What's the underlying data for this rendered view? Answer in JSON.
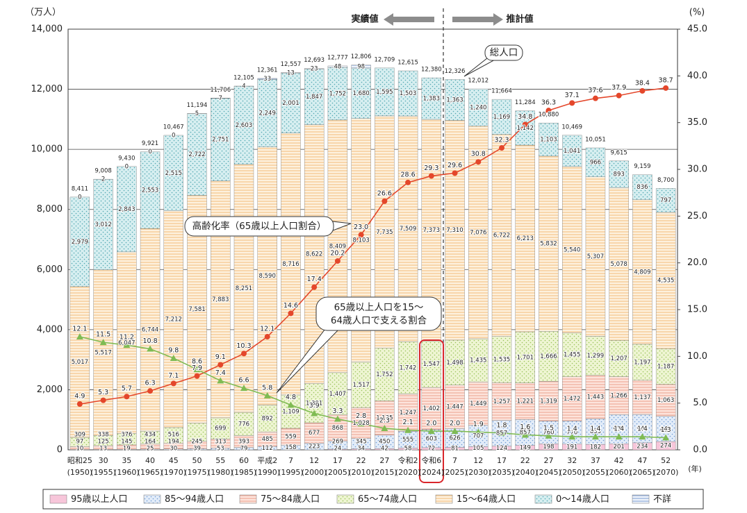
{
  "chart_data": {
    "type": "bar",
    "y_unit": "（万人）",
    "y2_unit": "(%)",
    "x_unit": "(年)",
    "annotations": {
      "actual": "実績値",
      "projected": "推計値",
      "total": "総人口",
      "aging_callout": "高齢化率（65歳以上人口割合）",
      "support_callout": [
        "65歳以上人口を15～",
        "64歳人口で支える割合"
      ]
    },
    "categories": [
      "昭和25",
      "30",
      "35",
      "40",
      "45",
      "50",
      "55",
      "60",
      "平成2",
      "7",
      "12",
      "17",
      "22",
      "27",
      "令和2",
      "令和6",
      "7",
      "12",
      "17",
      "22",
      "27",
      "32",
      "37",
      "42",
      "47",
      "52"
    ],
    "category_years": [
      "(1950)",
      "(1955)",
      "(1960)",
      "(1965)",
      "(1970)",
      "(1975)",
      "(1980)",
      "(1985)",
      "(1990)",
      "(1995)",
      "(2000)",
      "(2005)",
      "(2010)",
      "(2015)",
      "(2020)",
      "(2024)",
      "(2025)",
      "(2030)",
      "(2035)",
      "(2040)",
      "(2045)",
      "(2050)",
      "(2055)",
      "(2060)",
      "(2065)",
      "(2070)"
    ],
    "ylim": [
      0,
      14000
    ],
    "yticks": [
      0,
      {
        "value": 2000,
        "label": "2,000"
      },
      {
        "value": 4000,
        "label": "4,000"
      },
      {
        "value": 6000,
        "label": "6,000"
      },
      {
        "value": 8000,
        "label": "8,000"
      },
      {
        "value": 10000,
        "label": "10,000"
      },
      {
        "value": 12000,
        "label": "12,000"
      },
      {
        "value": 14000,
        "label": "14,000"
      }
    ],
    "y2lim": [
      0,
      45
    ],
    "y2ticks": [
      {
        "value": 0,
        "label": "0.0"
      },
      {
        "value": 5,
        "label": "5.0"
      },
      {
        "value": 10,
        "label": "10.0"
      },
      {
        "value": 15,
        "label": "15.0"
      },
      {
        "value": 20,
        "label": "20.0"
      },
      {
        "value": 25,
        "label": "25.0"
      },
      {
        "value": 30,
        "label": "30.0"
      },
      {
        "value": 35,
        "label": "35.0"
      },
      {
        "value": 40,
        "label": "40.0"
      },
      {
        "value": 45,
        "label": "45.0"
      }
    ],
    "grid": true,
    "totals": {
      "values": [
        8411,
        9008,
        9430,
        9921,
        10467,
        11194,
        11706,
        12105,
        12361,
        12557,
        12693,
        12777,
        12806,
        12709,
        12615,
        12380,
        12326,
        12012,
        11664,
        11284,
        10880,
        10469,
        10051,
        9615,
        9159,
        8700
      ],
      "value_labels": [
        "8,411",
        "9,008",
        "9,430",
        "9,921",
        "10,467",
        "11,194",
        "11,706",
        "12,105",
        "12,361",
        "12,557",
        "12,693",
        "12,777",
        "12,806",
        "12,709",
        "12,615",
        "12,380",
        "12,326",
        "12,012",
        "11,664",
        "11,284",
        "10,880",
        "10,469",
        "10,051",
        "9,615",
        "9,159",
        "8,700"
      ]
    },
    "series": [
      {
        "name": "95歳以上人口",
        "color": "#f7c6da",
        "pattern": "solid",
        "pattern_color": "#f7c6da",
        "values": [
          null,
          null,
          null,
          null,
          null,
          null,
          null,
          null,
          null,
          null,
          null,
          24,
          34,
          42,
          58,
          72,
          81,
          105,
          124,
          149,
          198,
          191,
          182,
          201,
          234,
          274
        ]
      },
      {
        "name": "85～94歳人口",
        "color": "#e2ecf9",
        "pattern": "dots",
        "pattern_color": "#6f9ad3",
        "values": [
          10,
          13,
          19,
          25,
          30,
          39,
          53,
          79,
          112,
          158,
          223,
          269,
          345,
          450,
          555,
          603,
          626,
          707,
          857,
          857,
          760,
          770,
          853,
          970,
          945,
          843
        ]
      },
      {
        "name": "75～84歳人口",
        "color": "#fde4dc",
        "pattern": "stripes",
        "pattern_color": "#e4836b",
        "values": [
          97,
          125,
          145,
          164,
          194,
          245,
          313,
          393,
          485,
          559,
          677,
          868,
          1028,
          1135,
          1247,
          1402,
          1447,
          1449,
          1257,
          1221,
          1319,
          1472,
          1443,
          1266,
          1137,
          1063
        ],
        "value_labels": [
          "97",
          "125",
          "145",
          "164",
          "194",
          "245",
          "313",
          "393",
          "485",
          "559",
          "677",
          "868",
          "1,028",
          "1,135",
          "1,247",
          "1,402",
          "1,447",
          "1,449",
          "1,257",
          "1,221",
          "1,319",
          "1,472",
          "1,443",
          "1,266",
          "1,137",
          "1,063"
        ]
      },
      {
        "name": "65～74歳人口",
        "color": "#eef5d2",
        "pattern": "dots",
        "pattern_color": "#98c257",
        "values": [
          309,
          338,
          376,
          434,
          516,
          602,
          699,
          776,
          892,
          1109,
          1301,
          1407,
          1517,
          1752,
          1742,
          1547,
          1498,
          1435,
          1535,
          1701,
          1666,
          1455,
          1299,
          1207,
          1197,
          1187
        ],
        "value_labels": [
          "309",
          "338",
          "376",
          "434",
          "516",
          null,
          "699",
          "776",
          "892",
          "1,109",
          "1,301",
          "1,407",
          "1,517",
          "1,752",
          "1,742",
          "1,547",
          "1,498",
          "1,435",
          "1,535",
          "1,701",
          "1,666",
          "1,455",
          "1,299",
          "1,207",
          "1,197",
          "1,187"
        ]
      },
      {
        "name": "15～64歳人口",
        "color": "#fdf1de",
        "pattern": "stripes",
        "pattern_color": "#f0a64c",
        "values": [
          5017,
          5517,
          6047,
          6744,
          7212,
          7581,
          7883,
          8251,
          8590,
          8716,
          8622,
          8409,
          8103,
          7735,
          7509,
          7373,
          7310,
          7076,
          6722,
          6213,
          5832,
          5540,
          5307,
          5078,
          4809,
          4535
        ],
        "value_labels": [
          "5,017",
          "5,517",
          "6,047",
          "6,744",
          "7,212",
          "7,581",
          "7,883",
          "8,251",
          "8,590",
          "8,716",
          "8,622",
          "8,409",
          "8,103",
          "7,735",
          "7,509",
          "7,373",
          "7,310",
          "7,076",
          "6,722",
          "6,213",
          "5,832",
          "5,540",
          "5,307",
          "5,078",
          "4,809",
          "4,535"
        ]
      },
      {
        "name": "0～14歳人口",
        "color": "#d6eef0",
        "pattern": "dots",
        "pattern_color": "#4fa6b0",
        "values": [
          2979,
          3012,
          2843,
          2553,
          2515,
          2722,
          2751,
          2603,
          2249,
          2001,
          1847,
          1752,
          1680,
          1595,
          1503,
          1383,
          1363,
          1240,
          1169,
          1142,
          1103,
          1041,
          966,
          893,
          836,
          797
        ],
        "value_labels": [
          "2,979",
          "3,012",
          "2,843",
          "2,553",
          "2,515",
          "2,722",
          "2,751",
          "2,603",
          "2,249",
          "2,001",
          "1,847",
          "1,752",
          "1,680",
          "1,595",
          "1,503",
          "1,383",
          "1,363",
          "1,240",
          "1,169",
          "1,142",
          "1,103",
          "1,041",
          "966",
          "893",
          "836",
          "797"
        ]
      },
      {
        "name": "不詳",
        "color": "#eef3fb",
        "pattern": "stripes",
        "pattern_color": "#4a76c0",
        "values": [
          0,
          2,
          0,
          0,
          0,
          5,
          7,
          4,
          33,
          13,
          23,
          48,
          98,
          null,
          null,
          null,
          null,
          null,
          null,
          null,
          null,
          null,
          null,
          null,
          null,
          null
        ]
      }
    ],
    "lines": [
      {
        "axis": "y2",
        "color": "#e4472b",
        "marker": "circle",
        "values": [
          4.9,
          5.3,
          5.7,
          6.3,
          7.1,
          7.9,
          9.1,
          10.3,
          12.1,
          14.6,
          17.4,
          20.2,
          23.0,
          26.6,
          28.6,
          29.3,
          29.6,
          30.8,
          32.3,
          34.8,
          36.3,
          37.1,
          37.6,
          37.9,
          38.4,
          38.7
        ],
        "value_labels": [
          "4.9",
          "5.3",
          "5.7",
          "6.3",
          "7.1",
          "7.9",
          "9.1",
          "10.3",
          "12.1",
          "14.6",
          "17.4",
          "20.2",
          "23.0",
          "26.6",
          "28.6",
          "29.3",
          "29.6",
          "30.8",
          "32.3",
          "34.8",
          "36.3",
          "37.1",
          "37.6",
          "37.9",
          "38.4",
          "38.7"
        ]
      },
      {
        "axis": "y2",
        "color": "#7fbb53",
        "marker": "triangle",
        "values": [
          12.1,
          11.5,
          11.2,
          10.8,
          9.8,
          8.6,
          7.4,
          6.6,
          5.8,
          4.8,
          3.9,
          3.3,
          2.8,
          2.3,
          2.1,
          2.0,
          2.0,
          1.9,
          1.8,
          1.6,
          1.5,
          1.4,
          1.4,
          1.4,
          1.4,
          1.3
        ],
        "value_labels": [
          "12.1",
          "11.5",
          "11.2",
          "10.8",
          "9.8",
          "8.6",
          "7.4",
          "6.6",
          "5.8",
          "4.8",
          "3.9",
          "3.3",
          "2.8",
          "2.3",
          "2.1",
          "2.0",
          "2.0",
          "1.9",
          "1.8",
          "1.6",
          "1.5",
          "1.4",
          "1.4",
          "1.4",
          "1.4",
          "1.3"
        ]
      }
    ]
  }
}
